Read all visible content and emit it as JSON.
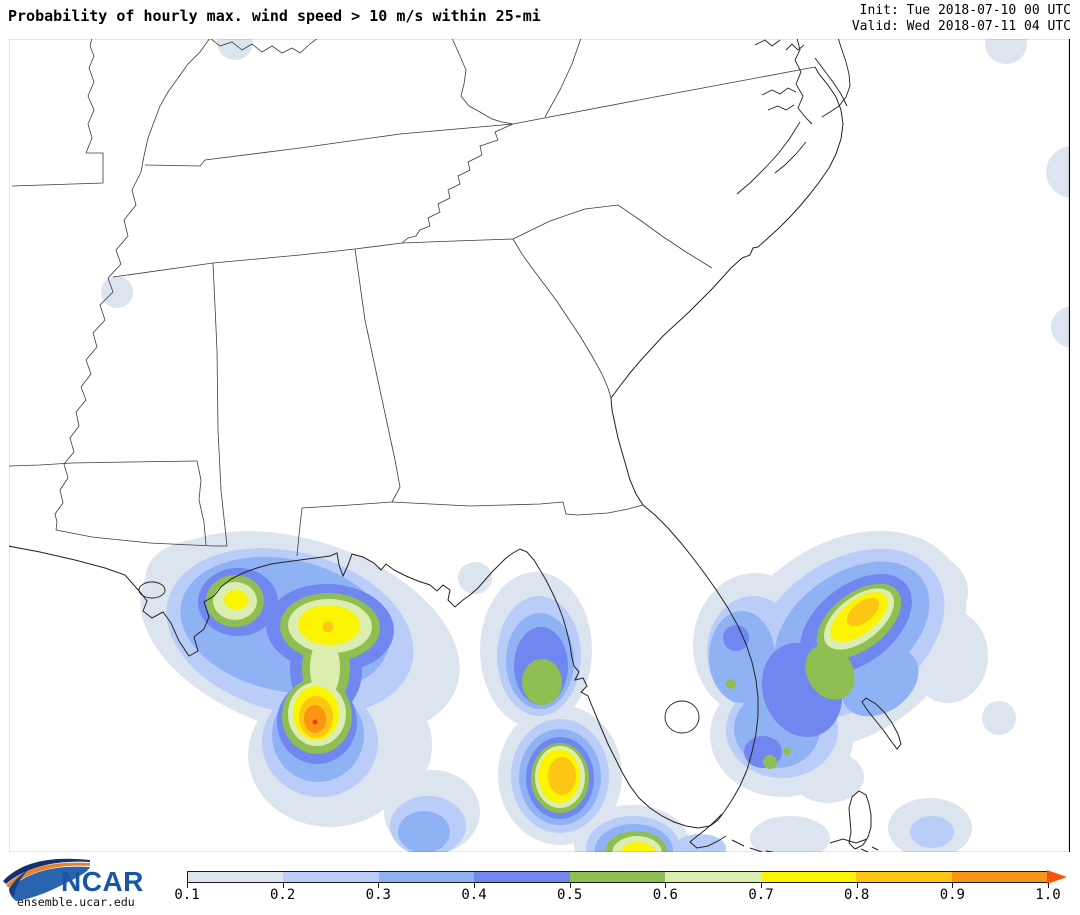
{
  "header": {
    "title": "Probability of hourly max. wind speed > 10 m/s within 25-mi",
    "init_label": "Init: Tue 2018-07-10 00 UTC",
    "valid_label": "Valid: Wed 2018-07-11 04 UTC"
  },
  "map": {
    "region": "Southeastern United States, Gulf of Mexico and adjacent Atlantic",
    "hotspots": [
      {
        "region": "Gulf of Mexico south of the Mississippi delta",
        "peak": 0.9
      },
      {
        "region": "Gulf off Mississippi / Alabama coast",
        "peak": 0.8
      },
      {
        "region": "Nearshore southeast Louisiana",
        "peak": 0.7
      },
      {
        "region": "Gulf southwest of Tampa Bay",
        "peak": 0.5
      },
      {
        "region": "Gulf west of Fort Myers",
        "peak": 0.8
      },
      {
        "region": "South of the Florida Keys",
        "peak": 0.7
      },
      {
        "region": "Atlantic east of central Florida / northern Bahamas",
        "peak": 0.8
      }
    ]
  },
  "colorbar": {
    "labels": [
      "0.1",
      "0.2",
      "0.3",
      "0.4",
      "0.5",
      "0.6",
      "0.7",
      "0.8",
      "0.9",
      "1.0"
    ],
    "colors": [
      "#dce4ef",
      "#b9cdf8",
      "#8fb2f4",
      "#6f87ee",
      "#8fbe53",
      "#dcedb0",
      "#fbf403",
      "#fcc612",
      "#fc9513"
    ],
    "arrow_color": "#f5530e",
    "peak_color": "#e8420c"
  },
  "footer": {
    "logo_text": "NCAR",
    "site_text": "ensemble.ucar.edu",
    "logo_colors": {
      "navy": "#15306e",
      "orange": "#e8832c",
      "blue": "#2a64ae",
      "text_blue": "#1857a8"
    }
  }
}
